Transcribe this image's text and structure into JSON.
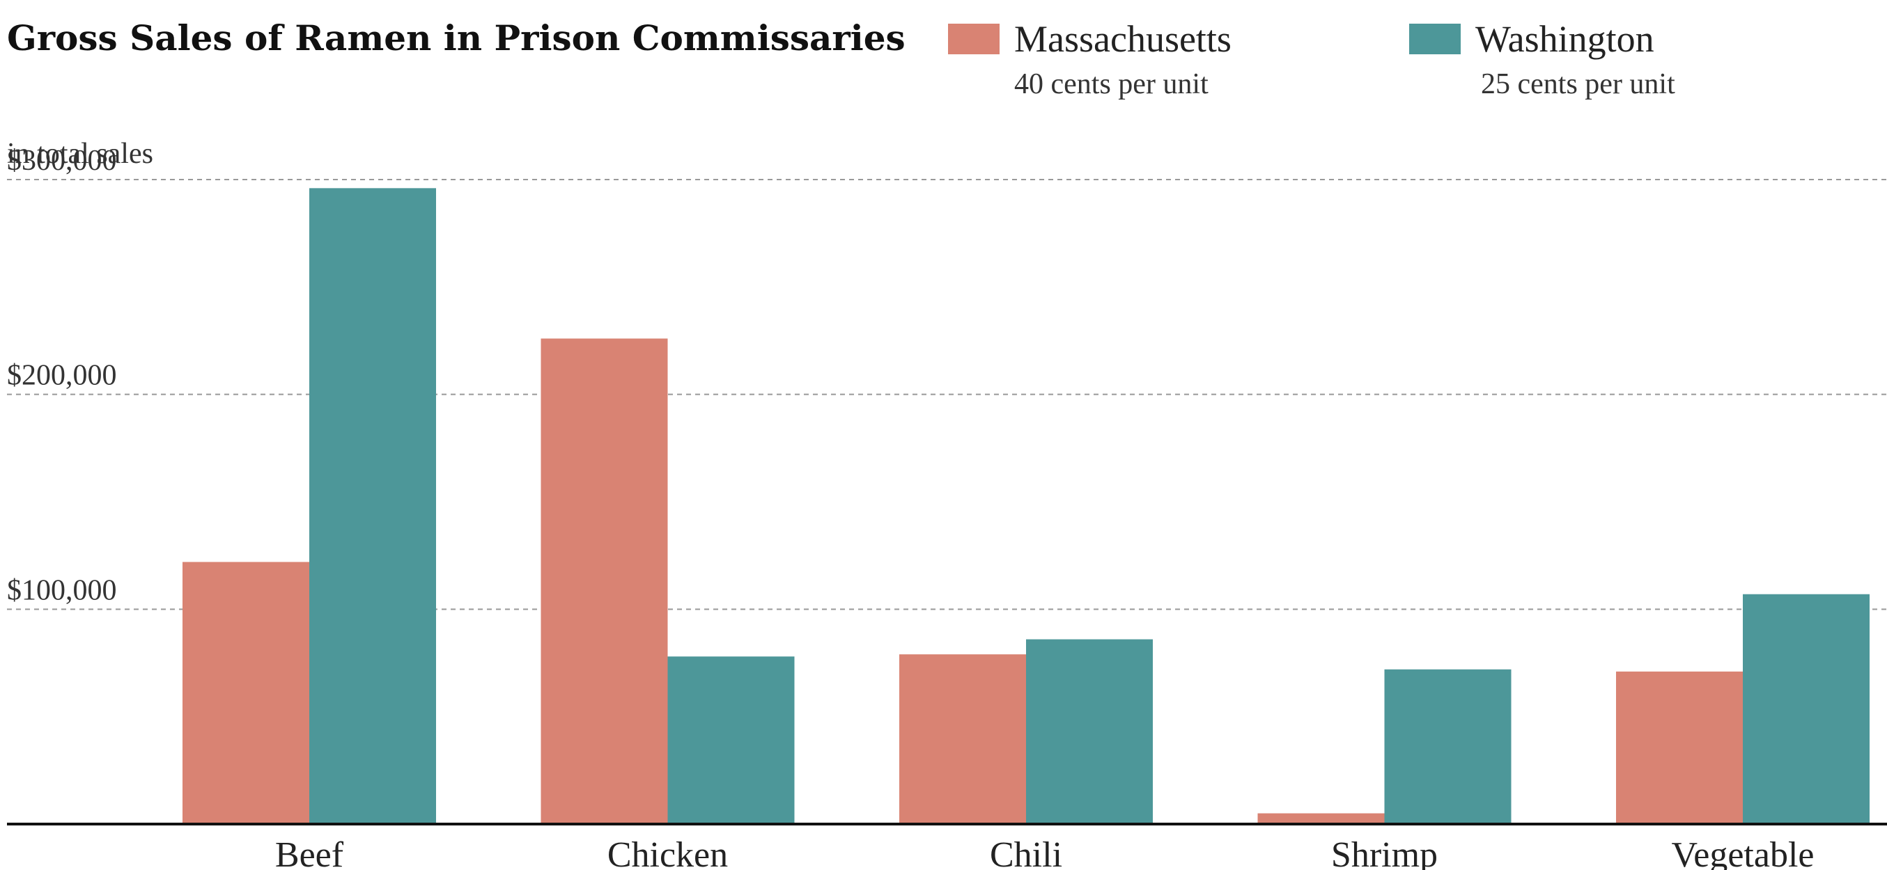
{
  "chart_data": {
    "type": "bar",
    "title": "Gross Sales of Ramen in Prison Commissaries",
    "categories": [
      "Beef",
      "Chicken",
      "Chili",
      "Shrimp",
      "Vegetable"
    ],
    "series": [
      {
        "name": "Massachusetts",
        "subtitle": "40 cents per unit",
        "color": "#d98373",
        "values": [
          122000,
          226000,
          79000,
          5000,
          71000
        ]
      },
      {
        "name": "Washington",
        "subtitle": "25 cents per unit",
        "color": "#4d9799",
        "values": [
          296000,
          78000,
          86000,
          72000,
          107000
        ]
      }
    ],
    "y_ticks": [
      {
        "value": 100000,
        "label": "$100,000"
      },
      {
        "value": 200000,
        "label": "$200,000"
      },
      {
        "value": 300000,
        "label": "$300,000"
      }
    ],
    "y_unit_label": "in total sales",
    "ylim": [
      0,
      300000
    ],
    "grid": true,
    "legend_position": "top-right"
  }
}
